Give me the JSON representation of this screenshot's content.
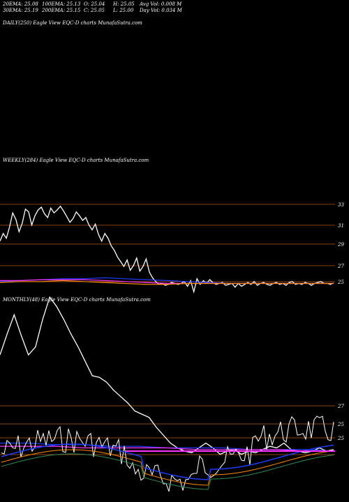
{
  "stats": {
    "ema20": "20EMA: 25.08",
    "ema100": "100EMA: 25.13",
    "open": "O: 25.04",
    "high": "H: 25.05",
    "avg_vol": "Avg Vol: 0.008  M",
    "ema30": "30EMA: 25.19",
    "ema200": "200EMA: 25.15",
    "close": "C: 25.05",
    "low": "L: 25.00",
    "day_vol": "Day Vol: 0.034  M"
  },
  "colors": {
    "background": "#000000",
    "price": "#ffffff",
    "grid": "#8b4513",
    "ema_blue": "#1e3cff",
    "ema_magenta": "#ff33ff",
    "ema_orange": "#ff8c00",
    "ema_green": "#2e8b57"
  },
  "chart_data": [
    {
      "type": "line",
      "label": "DAILY(250) Eagle   View  EQC-D charts MunafaSutra.com",
      "series": []
    },
    {
      "type": "line",
      "label": "WEEKLY(284) Eagle   View  EQC-D charts MunafaSutra.com",
      "yticks": [
        "33",
        "31",
        "29",
        "27",
        "25"
      ],
      "ylim": [
        24.0,
        34.0
      ],
      "series": [
        {
          "values": [
            29.5,
            30.3,
            29.8,
            31.0,
            32.5,
            31.8,
            30.5,
            31.4,
            32.9,
            32.6,
            31.2,
            32.2,
            32.8,
            33.1,
            32.4,
            32.0,
            33.0,
            32.5,
            32.8,
            33.2,
            32.7,
            32.1,
            31.5,
            31.9,
            32.6,
            32.2,
            31.7,
            32.0,
            31.2,
            30.7,
            31.3,
            30.2,
            29.5,
            30.3,
            29.8,
            29.0,
            28.5,
            27.8,
            27.3,
            26.8,
            27.5,
            26.4,
            26.9,
            27.7,
            26.3,
            26.8,
            27.6,
            26.2,
            25.6,
            25.2,
            24.9,
            25.0,
            24.8,
            24.9,
            25.1,
            25.0,
            24.9,
            25.0,
            25.2,
            24.7,
            25.3,
            24.1,
            25.5,
            24.9,
            25.3,
            25.0,
            25.4,
            25.1,
            24.9,
            25.0,
            25.1,
            24.8,
            24.9,
            25.0,
            24.6,
            25.0,
            24.7,
            24.9,
            25.1,
            24.9,
            25.2,
            24.8,
            25.0,
            25.1,
            24.9,
            24.8,
            25.0,
            25.1,
            24.9,
            25.0,
            24.8,
            25.1,
            25.2,
            24.9,
            25.0,
            24.9,
            25.1,
            25.0,
            24.8,
            25.0,
            25.1,
            25.2,
            25.0,
            25.0,
            24.9,
            25.05
          ]
        },
        {
          "values": [
            25.2,
            25.3,
            25.4,
            25.5,
            25.5,
            25.6,
            25.5,
            25.4,
            25.3,
            25.2,
            25.1,
            25.0,
            25.0,
            25.0,
            25.0,
            25.0,
            25.0
          ]
        },
        {
          "values": [
            25.3,
            25.3,
            25.4,
            25.4,
            25.4,
            25.3,
            25.2,
            25.1,
            25.0,
            25.0,
            25.0,
            25.0,
            25.0,
            25.0,
            25.0,
            25.0,
            25.0
          ]
        },
        {
          "values": [
            25.1,
            25.2,
            25.2,
            25.3,
            25.2,
            25.1,
            25.0,
            24.9,
            24.9,
            25.0,
            25.0,
            25.0,
            25.0,
            25.0,
            25.0,
            25.0,
            25.0
          ]
        }
      ]
    },
    {
      "type": "line",
      "label": "MONTHLY(48) Eagle   View  EQC-D charts MunafaSutra.com",
      "yticks": [
        "27",
        "25",
        "25"
      ],
      "ylim": [
        24.0,
        34.0
      ],
      "series": [
        {
          "values": [
            31.0,
            32.3,
            33.5,
            32.2,
            31.0,
            31.5,
            33.2,
            34.6,
            34.0,
            33.2,
            32.3,
            31.5,
            30.6,
            29.7,
            29.6,
            29.3,
            28.8,
            28.4,
            28.0,
            27.5,
            27.3,
            27.1,
            26.5,
            26.0,
            25.5,
            25.2,
            25.0,
            24.9,
            25.2,
            25.5,
            25.2,
            24.8,
            25.0,
            25.1,
            24.8,
            25.0,
            24.9,
            25.1,
            25.3,
            25.2,
            25.5,
            25.1,
            25.0,
            24.9,
            25.0,
            25.2,
            25.0,
            25.1
          ]
        },
        {
          "values": [
            25.5,
            25.5,
            25.4,
            25.4,
            25.3,
            25.3,
            25.2,
            25.2,
            25.2,
            25.1,
            25.1,
            25.1,
            25.0
          ]
        },
        {
          "values": [
            25.3,
            25.3,
            25.3,
            25.2,
            25.2,
            25.2,
            25.2,
            25.1,
            25.1,
            25.1,
            25.1,
            25.0,
            25.0
          ]
        }
      ]
    }
  ]
}
